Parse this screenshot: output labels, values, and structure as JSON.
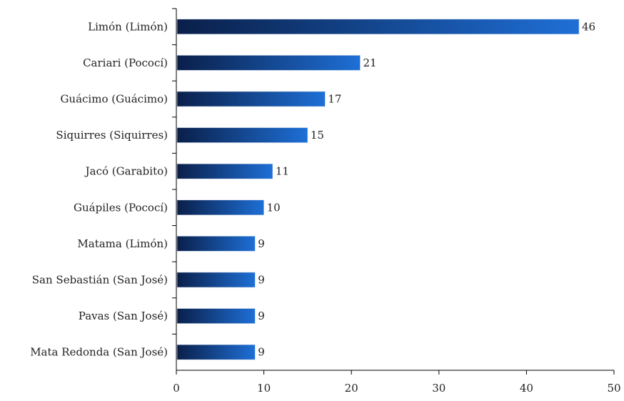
{
  "chart_data": {
    "type": "bar",
    "orientation": "horizontal",
    "categories": [
      "Limón (Limón)",
      "Cariari (Pococí)",
      "Guácimo (Guácimo)",
      "Siquirres (Siquirres)",
      "Jacó (Garabito)",
      "Guápiles (Pococí)",
      "Matama (Limón)",
      "San Sebastián (San José)",
      "Pavas (San José)",
      "Mata Redonda (San José)"
    ],
    "values": [
      46,
      21,
      17,
      15,
      11,
      10,
      9,
      9,
      9,
      9
    ],
    "data_labels": [
      "46",
      "21",
      "17",
      "15",
      "11",
      "10",
      "9",
      "9",
      "9",
      "9"
    ],
    "xlim": [
      0,
      50
    ],
    "xticks": [
      0,
      10,
      20,
      30,
      40,
      50
    ],
    "title": "",
    "xlabel": "",
    "ylabel": "",
    "grid": false,
    "legend": "none",
    "colors": {
      "bar_gradient_start": "#0a1f4a",
      "bar_gradient_end": "#1e6fd6",
      "axis": "#000000",
      "text": "#222222"
    }
  }
}
